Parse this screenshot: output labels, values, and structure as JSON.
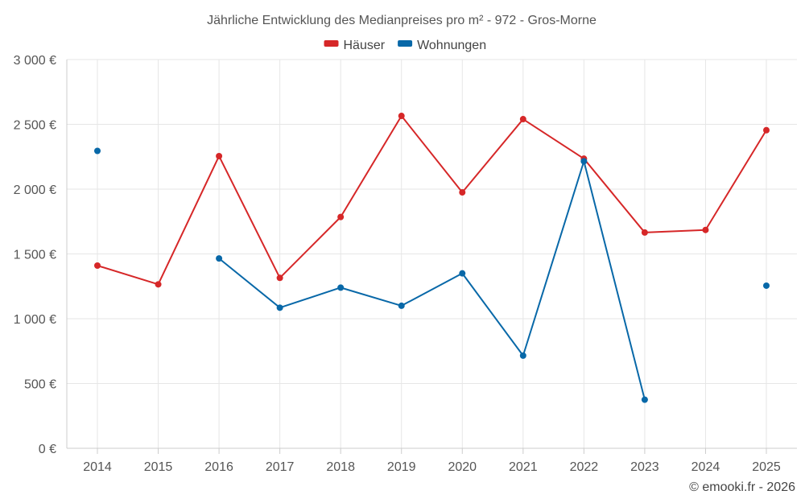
{
  "chart_data": {
    "type": "line",
    "title": "Jährliche Entwicklung des Medianpreises pro m² - 972 - Gros-Morne",
    "categories": [
      "2014",
      "2015",
      "2016",
      "2017",
      "2018",
      "2019",
      "2020",
      "2021",
      "2022",
      "2023",
      "2024",
      "2025"
    ],
    "series": [
      {
        "name": "Häuser",
        "color": "#d62728",
        "values": [
          1410,
          1265,
          2255,
          1315,
          1785,
          2565,
          1975,
          2540,
          2235,
          1665,
          1685,
          2455
        ]
      },
      {
        "name": "Wohnungen",
        "color": "#0868a8",
        "values": [
          2295,
          null,
          1465,
          1085,
          1240,
          1100,
          1350,
          715,
          2215,
          375,
          null,
          1255
        ]
      }
    ],
    "ylim": [
      0,
      3000
    ],
    "yticks": [
      0,
      500,
      1000,
      1500,
      2000,
      2500,
      3000
    ],
    "ytick_labels": [
      "0 €",
      "500 €",
      "1 000 €",
      "1 500 €",
      "2 000 €",
      "2 500 €",
      "3 000 €"
    ],
    "xlabel": "",
    "ylabel": "",
    "grid": true,
    "legend_position": "top-center"
  },
  "credit": "© emooki.fr - 2026"
}
